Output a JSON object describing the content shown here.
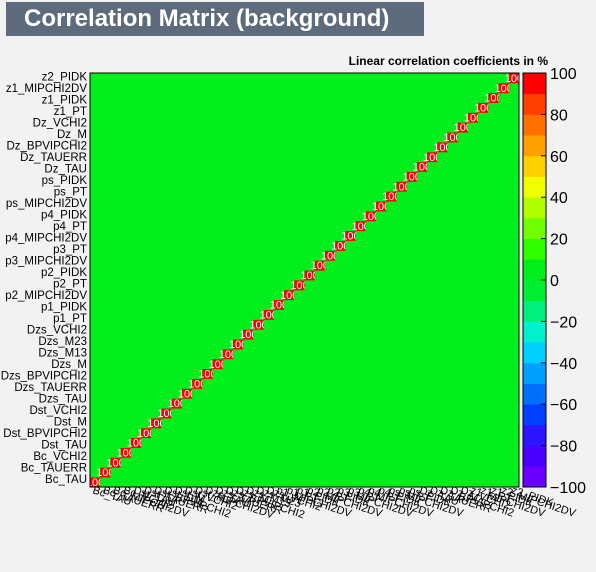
{
  "header": {
    "title": "Correlation Matrix (background)",
    "subtitle": "Linear correlation coefficients in %"
  },
  "chart_data": {
    "type": "heatmap",
    "title": "Correlation Matrix (background)",
    "subtitle": "Linear correlation coefficients in %",
    "variables": [
      "Bc_TAU",
      "Bc_TAUERR",
      "Bc_MIPCHI2DV",
      "Bc_VCHI2",
      "Dst_TAU",
      "Dst_TAUERR",
      "Dst_BPVIPCHI2",
      "Dst_DM",
      "Dst_M",
      "Dst_VCHI2",
      "Dst_MIPCHI2DV",
      "Dzs_TAU",
      "Dzs_TAUERR",
      "Dzs_BPVIPCHI2",
      "Dzs_M",
      "Dzs_M13",
      "Dzs_M23",
      "Dzs_VCHI2",
      "p1_MIPCHI2DV",
      "p1_PT",
      "p1_PIDK",
      "p2_MIPCHI2DV",
      "p2_PT",
      "p2_PIDK",
      "p3_MIPCHI2DV",
      "p3_PT",
      "p4_MIPCHI2DV",
      "p4_PT",
      "p4_PIDK",
      "ps_MIPCHI2DV",
      "ps_PT",
      "ps_PIDK",
      "Dz_TAU",
      "Dz_TAUERR",
      "Dz_BPVIPCHI2",
      "Dz_M",
      "Dz_VCHI2",
      "z1_MIPCHI2DV",
      "z1_PT",
      "z1_PIDK",
      "z2_MIPCHI2DV",
      "z2_PIDK"
    ],
    "y_labels_visible": [
      "Bc_TAU",
      "Bc_TAUERR",
      "Bc_VCHI2",
      "Dst_TAU",
      "Dst_BPVIPCHI2",
      "Dst_M",
      "Dst_VCHI2",
      "Dzs_TAU",
      "Dzs_TAUERR",
      "Dzs_BPVIPCHI2",
      "Dzs_M",
      "Dzs_M13",
      "Dzs_M23",
      "Dzs_VCHI2",
      "p1_PT",
      "p1_PIDK",
      "p2_MIPCHI2DV",
      "p2_PT",
      "p2_PIDK",
      "p3_MIPCHI2DV",
      "p3_PT",
      "p4_MIPCHI2DV",
      "p4_PT",
      "p4_PIDK",
      "ps_MIPCHI2DV",
      "ps_PT",
      "ps_PIDK",
      "Dz_TAU",
      "Dz_TAUERR",
      "Dz_BPVIPCHI2",
      "Dz_M",
      "Dz_VCHI2",
      "z1_PT",
      "z1_PIDK",
      "z1_MIPCHI2DV",
      "z2_PIDK"
    ],
    "z_axis": {
      "min": -100,
      "max": 100,
      "ticks": [
        "100",
        "80",
        "60",
        "40",
        "20",
        "0",
        "−20",
        "−40",
        "−60",
        "−80",
        "−100"
      ]
    },
    "diagonal_value": 100,
    "typical_offdiagonal_range": [
      -40,
      40
    ],
    "colors": {
      "page_bg": "#f2f2f2",
      "title_bg": "#5d6b7d",
      "cell_default": "#00ee1c",
      "diagonal": "#ff0000",
      "cell_text": "#ffffff"
    },
    "palette": [
      "#6a00ff",
      "#4b00ff",
      "#2a16ff",
      "#0040ff",
      "#0070ff",
      "#00a0ff",
      "#00d0ff",
      "#00f0d0",
      "#00f080",
      "#00ee30",
      "#00ee1c",
      "#30ff00",
      "#70ff00",
      "#b0ff00",
      "#f0ff00",
      "#ffd000",
      "#ffa000",
      "#ff7000",
      "#ff4000",
      "#ff0000"
    ]
  }
}
